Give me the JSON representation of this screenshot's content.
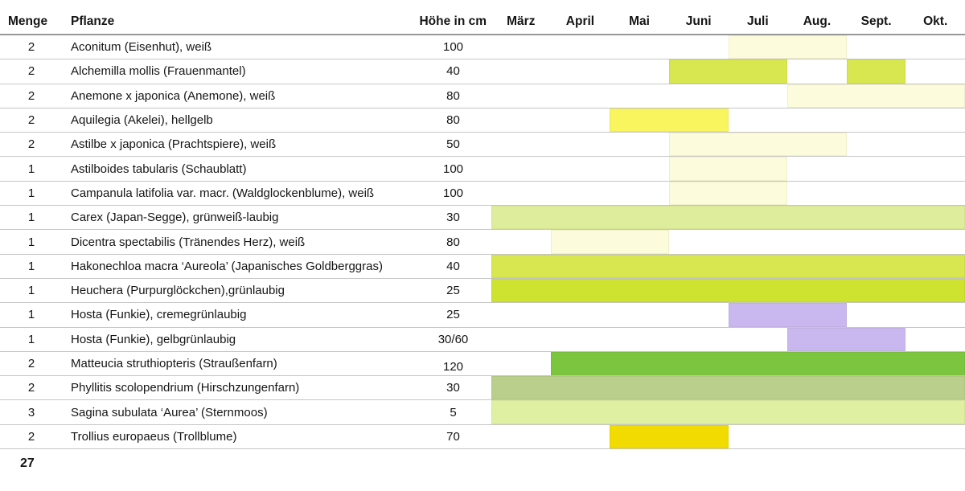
{
  "header": {
    "menge": "Menge",
    "pflanze": "Pflanze",
    "hoehe": "Höhe in cm",
    "months": [
      "März",
      "April",
      "Mai",
      "Juni",
      "Juli",
      "Aug.",
      "Sept.",
      "Okt."
    ]
  },
  "colors": {
    "cream": "#FCFBDB",
    "yellowgreen": "#D8E64F",
    "lightyellow": "#F8F55F",
    "carex": "#DEED9B",
    "vivid": "#CDE32F",
    "purple": "#C9B7EF",
    "green": "#7CC53E",
    "sage": "#B9CF8B",
    "palegreen": "#DFF0A2",
    "gold": "#F2DB00"
  },
  "rows": [
    {
      "menge": "2",
      "pflanze": "Aconitum (Eisenhut), weiß",
      "hoehe": "100",
      "bars": [
        {
          "from": "Juli",
          "to": "Aug.",
          "color": "cream"
        }
      ]
    },
    {
      "menge": "2",
      "pflanze": "Alchemilla mollis (Frauenmantel)",
      "hoehe": "40",
      "bars": [
        {
          "from": "Juni",
          "to": "Juli",
          "color": "yellowgreen"
        },
        {
          "from": "Sept.",
          "to": "Sept.",
          "color": "yellowgreen"
        }
      ]
    },
    {
      "menge": "2",
      "pflanze": "Anemone x japonica (Anemone), weiß",
      "hoehe": "80",
      "bars": [
        {
          "from": "Aug.",
          "to": "Okt.",
          "color": "cream"
        }
      ]
    },
    {
      "menge": "2",
      "pflanze": "Aquilegia (Akelei), hellgelb",
      "hoehe": "80",
      "bars": [
        {
          "from": "Mai",
          "to": "Juni",
          "color": "lightyellow"
        }
      ]
    },
    {
      "menge": "2",
      "pflanze": "Astilbe x japonica (Prachtspiere), weiß",
      "hoehe": "50",
      "bars": [
        {
          "from": "Juni",
          "to": "Aug.",
          "color": "cream"
        }
      ]
    },
    {
      "menge": "1",
      "pflanze": "Astilboides tabularis (Schaublatt)",
      "hoehe": "100",
      "bars": [
        {
          "from": "Juni",
          "to": "Juli",
          "color": "cream"
        }
      ]
    },
    {
      "menge": "1",
      "pflanze": "Campanula latifolia var. macr. (Waldglockenblume), weiß",
      "hoehe": "100",
      "bars": [
        {
          "from": "Juni",
          "to": "Juli",
          "color": "cream"
        }
      ]
    },
    {
      "menge": "1",
      "pflanze": "Carex (Japan-Segge), grünweiß-laubig",
      "hoehe": "30",
      "bars": [
        {
          "from": "März",
          "to": "Okt.",
          "color": "carex"
        }
      ]
    },
    {
      "menge": "1",
      "pflanze": "Dicentra spectabilis (Tränendes Herz), weiß",
      "hoehe": "80",
      "bars": [
        {
          "from": "April",
          "to": "Mai",
          "color": "cream"
        }
      ]
    },
    {
      "menge": "1",
      "pflanze": "Hakonechloa macra ‘Aureola’ (Japanisches Goldberggras)",
      "hoehe": "40",
      "bars": [
        {
          "from": "März",
          "to": "Okt.",
          "color": "yellowgreen"
        }
      ]
    },
    {
      "menge": "1",
      "pflanze": "Heuchera (Purpurglöckchen),grünlaubig",
      "hoehe": "25",
      "bars": [
        {
          "from": "März",
          "to": "Okt.",
          "color": "vivid"
        }
      ]
    },
    {
      "menge": "1",
      "pflanze": "Hosta (Funkie), cremegrünlaubig",
      "hoehe": "25",
      "bars": [
        {
          "from": "Juli",
          "to": "Aug.",
          "color": "purple"
        }
      ]
    },
    {
      "menge": "1",
      "pflanze": "Hosta (Funkie), gelbgrünlaubig",
      "hoehe": "30/60",
      "bars": [
        {
          "from": "Aug.",
          "to": "Sept.",
          "color": "purple"
        }
      ]
    },
    {
      "menge": "2",
      "pflanze": "Matteucia struthiopteris (Straußenfarn)",
      "hoehe": "120",
      "hoehe_low": true,
      "bars": [
        {
          "from": "April",
          "to": "Okt.",
          "color": "green"
        }
      ]
    },
    {
      "menge": "2",
      "pflanze": "Phyllitis scolopendrium (Hirschzungenfarn)",
      "hoehe": "30",
      "bars": [
        {
          "from": "März",
          "to": "Okt.",
          "color": "sage"
        }
      ]
    },
    {
      "menge": "3",
      "pflanze": "Sagina subulata ‘Aurea’ (Sternmoos)",
      "hoehe": "5",
      "bars": [
        {
          "from": "März",
          "to": "Okt.",
          "color": "palegreen"
        }
      ]
    },
    {
      "menge": "2",
      "pflanze": "Trollius europaeus (Trollblume)",
      "hoehe": "70",
      "bars": [
        {
          "from": "Mai",
          "to": "Juni",
          "color": "gold"
        }
      ]
    }
  ],
  "page_number": "27"
}
